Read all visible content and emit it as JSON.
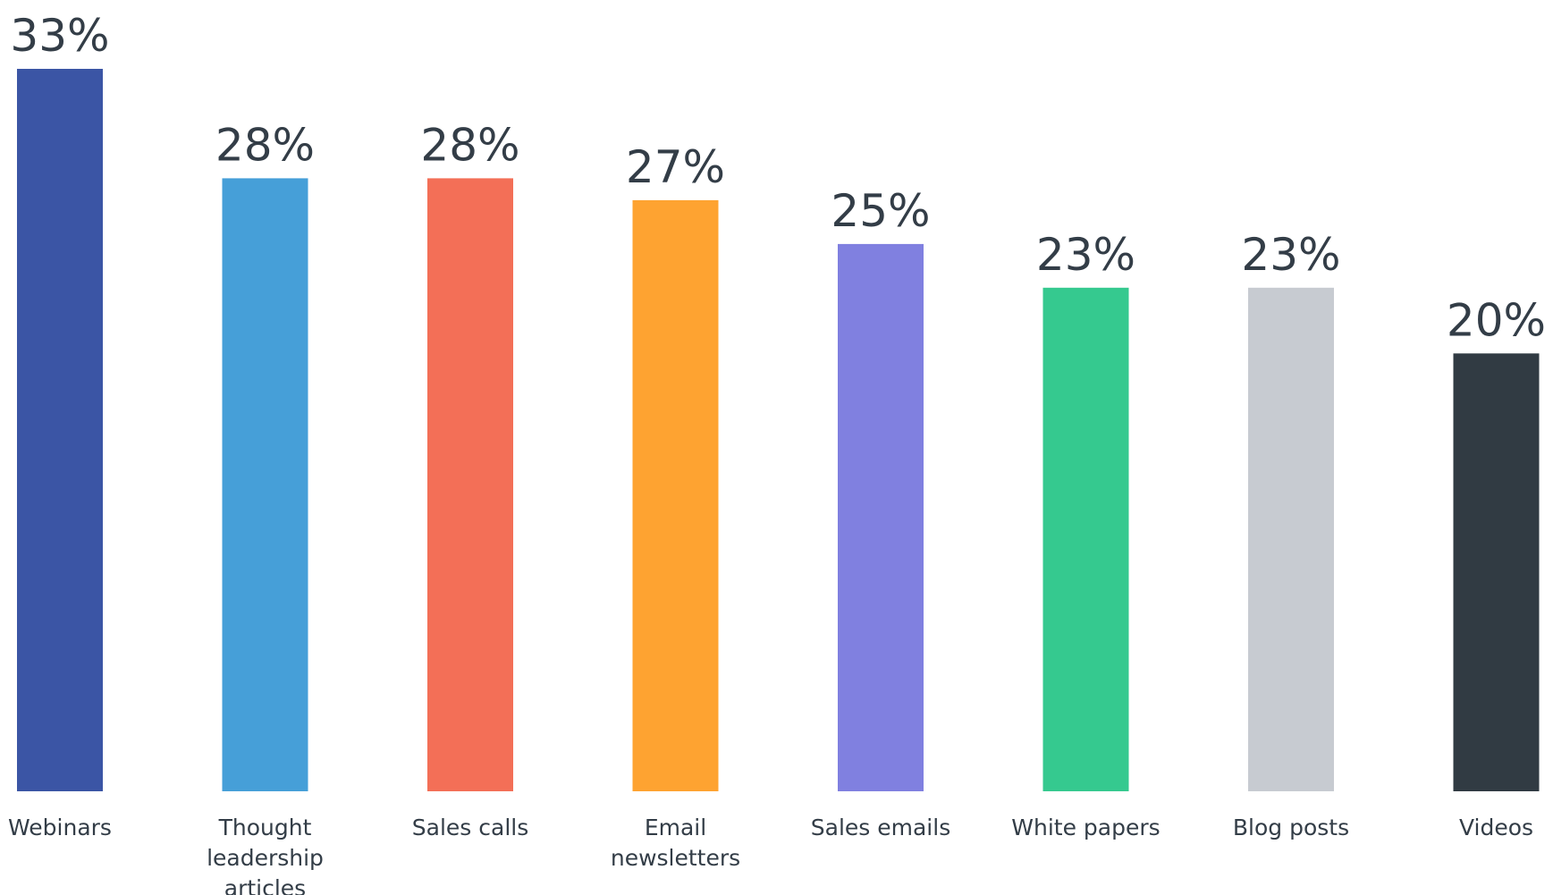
{
  "chart_data": {
    "type": "bar",
    "categories": [
      "Webinars",
      "Thought leadership articles",
      "Sales calls",
      "Email newsletters",
      "Sales emails",
      "White papers",
      "Blog posts",
      "Videos"
    ],
    "category_lines": [
      [
        "Webinars"
      ],
      [
        "Thought",
        "leadership",
        "articles"
      ],
      [
        "Sales calls"
      ],
      [
        "Email",
        "newsletters"
      ],
      [
        "Sales emails"
      ],
      [
        "White papers"
      ],
      [
        "Blog posts"
      ],
      [
        "Videos"
      ]
    ],
    "values": [
      33,
      28,
      28,
      27,
      25,
      23,
      23,
      20
    ],
    "data_labels": [
      "33%",
      "28%",
      "28%",
      "27%",
      "25%",
      "23%",
      "23%",
      "20%"
    ],
    "colors": [
      "#3b55a5",
      "#469fd8",
      "#f36f57",
      "#fea331",
      "#8080e0",
      "#35c98f",
      "#c7cbd1",
      "#313b43"
    ],
    "value_unit": "%",
    "ylim": [
      0,
      33
    ],
    "grid": false,
    "legend": "none",
    "title": "",
    "xlabel": "",
    "ylabel": ""
  }
}
